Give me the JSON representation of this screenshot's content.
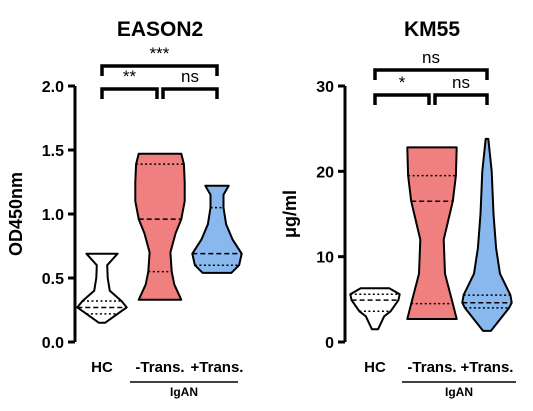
{
  "chart_data": [
    {
      "type": "violin",
      "title": "EASON2",
      "ylabel": "OD450nm",
      "xlabel": "",
      "ylim": [
        0,
        2.0
      ],
      "yticks": [
        "0.0",
        "0.5",
        "1.0",
        "1.5",
        "2.0"
      ],
      "categories": [
        "HC",
        "-Trans.",
        "+Trans."
      ],
      "group_label": "IgAN",
      "colors": [
        "#ffffff",
        "#f08080",
        "#88b8ee"
      ],
      "series": [
        {
          "category": "HC",
          "min": 0.15,
          "q1": 0.22,
          "median": 0.27,
          "q3": 0.32,
          "max": 0.69,
          "shape": [
            [
              0.15,
              0.12
            ],
            [
              0.22,
              0.6
            ],
            [
              0.27,
              0.95
            ],
            [
              0.32,
              0.75
            ],
            [
              0.4,
              0.3
            ],
            [
              0.5,
              0.22
            ],
            [
              0.6,
              0.2
            ],
            [
              0.69,
              0.6
            ]
          ]
        },
        {
          "category": "-Trans.",
          "min": 0.33,
          "q1": 0.55,
          "median": 0.96,
          "q3": 1.39,
          "max": 1.47,
          "shape": [
            [
              0.33,
              0.82
            ],
            [
              0.45,
              0.55
            ],
            [
              0.55,
              0.45
            ],
            [
              0.7,
              0.4
            ],
            [
              0.85,
              0.6
            ],
            [
              0.96,
              0.82
            ],
            [
              1.1,
              0.95
            ],
            [
              1.25,
              0.95
            ],
            [
              1.39,
              0.92
            ],
            [
              1.47,
              0.82
            ]
          ]
        },
        {
          "category": "+Trans.",
          "min": 0.54,
          "q1": 0.6,
          "median": 0.69,
          "q3": 1.05,
          "max": 1.22,
          "shape": [
            [
              0.54,
              0.55
            ],
            [
              0.6,
              0.85
            ],
            [
              0.69,
              0.95
            ],
            [
              0.8,
              0.6
            ],
            [
              0.92,
              0.35
            ],
            [
              1.05,
              0.25
            ],
            [
              1.15,
              0.25
            ],
            [
              1.22,
              0.45
            ]
          ]
        }
      ],
      "significance": [
        {
          "from": "HC",
          "to": "-Trans.",
          "label": "**"
        },
        {
          "from": "-Trans.",
          "to": "+Trans.",
          "label": "ns"
        },
        {
          "from": "HC",
          "to": "+Trans.",
          "label": "***"
        }
      ]
    },
    {
      "type": "violin",
      "title": "KM55",
      "ylabel": "μg/ml",
      "xlabel": "",
      "ylim": [
        0,
        30
      ],
      "yticks": [
        "0",
        "10",
        "20",
        "30"
      ],
      "categories": [
        "HC",
        "-Trans.",
        "+Trans."
      ],
      "group_label": "IgAN",
      "colors": [
        "#ffffff",
        "#f08080",
        "#88b8ee"
      ],
      "series": [
        {
          "category": "HC",
          "min": 1.5,
          "q1": 3.6,
          "median": 4.9,
          "q3": 5.6,
          "max": 6.3,
          "shape": [
            [
              1.5,
              0.12
            ],
            [
              3.0,
              0.35
            ],
            [
              3.6,
              0.6
            ],
            [
              4.9,
              0.9
            ],
            [
              5.6,
              0.95
            ],
            [
              6.3,
              0.55
            ]
          ]
        },
        {
          "category": "-Trans.",
          "min": 2.7,
          "q1": 4.5,
          "median": 16.5,
          "q3": 19.5,
          "max": 22.8,
          "shape": [
            [
              2.7,
              0.95
            ],
            [
              4.5,
              0.8
            ],
            [
              8.0,
              0.5
            ],
            [
              12.0,
              0.45
            ],
            [
              16.5,
              0.8
            ],
            [
              19.5,
              0.92
            ],
            [
              22.8,
              0.95
            ]
          ]
        },
        {
          "category": "+Trans.",
          "min": 1.3,
          "q1": 4.0,
          "median": 4.6,
          "q3": 5.5,
          "max": 23.8,
          "shape": [
            [
              1.3,
              0.15
            ],
            [
              4.0,
              0.85
            ],
            [
              4.6,
              0.95
            ],
            [
              5.5,
              0.9
            ],
            [
              8.0,
              0.5
            ],
            [
              11.0,
              0.35
            ],
            [
              15.0,
              0.25
            ],
            [
              20.0,
              0.18
            ],
            [
              23.8,
              0.05
            ]
          ]
        }
      ],
      "significance": [
        {
          "from": "HC",
          "to": "-Trans.",
          "label": "*"
        },
        {
          "from": "-Trans.",
          "to": "+Trans.",
          "label": "ns"
        },
        {
          "from": "HC",
          "to": "+Trans.",
          "label": "ns"
        }
      ]
    }
  ]
}
